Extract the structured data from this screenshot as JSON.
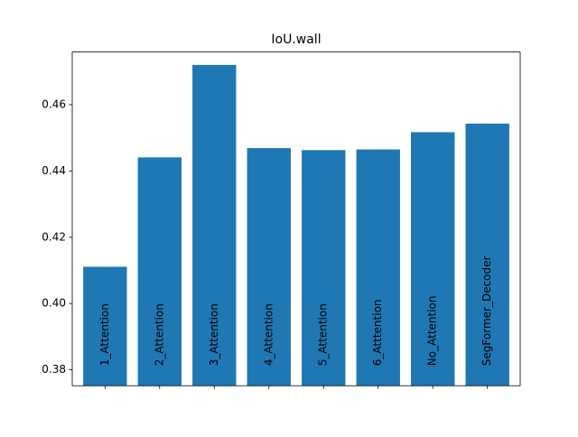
{
  "chart_data": {
    "type": "bar",
    "title": "IoU.wall",
    "xlabel": "",
    "ylabel": "",
    "categories": [
      "1_Attention",
      "2_Attention",
      "3_Attention",
      "4_Attention",
      "5_Attention",
      "6_Atttention",
      "No_Attention",
      "SegFormer_Decoder"
    ],
    "values": [
      0.4111,
      0.4441,
      0.472,
      0.4469,
      0.4463,
      0.4465,
      0.4517,
      0.4543
    ],
    "ylim": [
      0.3752,
      0.4759
    ],
    "yticks": [
      0.38,
      0.4,
      0.42,
      0.44,
      0.46
    ],
    "ytick_labels": [
      "0.38",
      "0.40",
      "0.42",
      "0.44",
      "0.46"
    ],
    "bar_color": "#1f77b4",
    "grid": false,
    "legend": "none"
  }
}
